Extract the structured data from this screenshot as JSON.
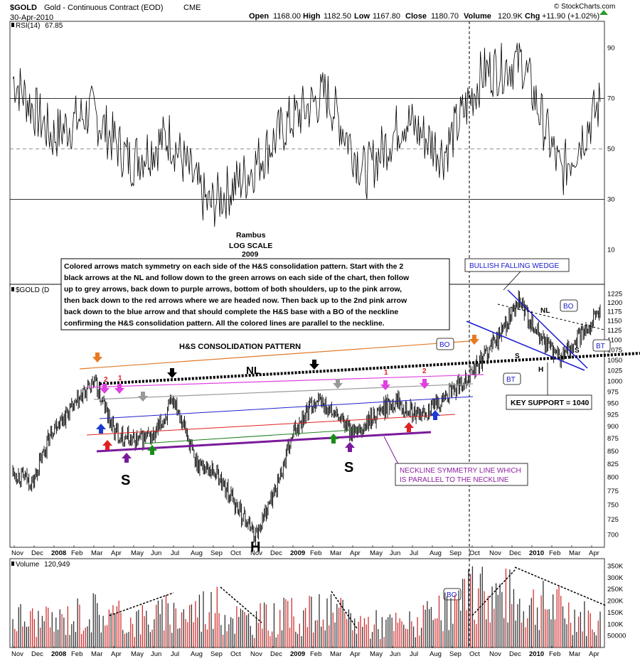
{
  "header": {
    "symbol": "$GOLD",
    "description": "Gold - Continuous Contract (EOD)",
    "exchange": "CME",
    "date": "30-Apr-2010",
    "open_label": "Open",
    "open": "1168.00",
    "high_label": "High",
    "high": "1182.50",
    "low_label": "Low",
    "low": "1167.80",
    "close_label": "Close",
    "close": "1180.70",
    "volume_label": "Volume",
    "volume": "120.9K",
    "chg_label": "Chg",
    "chg": "+11.90 (+1.02%)",
    "watermark": "© StockCharts.com"
  },
  "panels": {
    "rsi": {
      "label": "RSI(14)",
      "value": "67.85",
      "ticks": [
        "90",
        "70",
        "50",
        "30",
        "10"
      ],
      "tick_values": [
        90,
        70,
        50,
        30,
        10
      ],
      "overbought": 70,
      "oversold": 30,
      "midline": 50,
      "fill_color_ob": "#5e8a5e",
      "fill_color_os": "#b04a6a"
    },
    "price": {
      "label": "$GOLD (D",
      "scale": "log",
      "ticks": [
        "1225",
        "1200",
        "1175",
        "1150",
        "1125",
        "1100",
        "1075",
        "1050",
        "1025",
        "1000",
        "975",
        "950",
        "925",
        "900",
        "875",
        "850",
        "825",
        "800",
        "775",
        "750",
        "725",
        "700"
      ],
      "tick_values": [
        1225,
        1200,
        1175,
        1150,
        1125,
        1100,
        1075,
        1050,
        1025,
        1000,
        975,
        950,
        925,
        900,
        875,
        850,
        825,
        800,
        775,
        750,
        725,
        700
      ],
      "range": [
        680,
        1240
      ]
    },
    "volume": {
      "label": "Volume",
      "value": "120,949",
      "ticks": [
        "350K",
        "300K",
        "250K",
        "200K",
        "150K",
        "100K",
        "50000"
      ],
      "tick_values": [
        350000,
        300000,
        250000,
        200000,
        150000,
        100000,
        50000
      ],
      "range": [
        0,
        370000
      ]
    }
  },
  "x_axis": {
    "labels": [
      {
        "t": "Nov",
        "b": false
      },
      {
        "t": "Dec",
        "b": false
      },
      {
        "t": "2008",
        "b": true
      },
      {
        "t": "Feb",
        "b": false
      },
      {
        "t": "Mar",
        "b": false
      },
      {
        "t": "Apr",
        "b": false
      },
      {
        "t": "May",
        "b": false
      },
      {
        "t": "Jun",
        "b": false
      },
      {
        "t": "Jul",
        "b": false
      },
      {
        "t": "Aug",
        "b": false
      },
      {
        "t": "Sep",
        "b": false
      },
      {
        "t": "Oct",
        "b": false
      },
      {
        "t": "Nov",
        "b": false
      },
      {
        "t": "Dec",
        "b": false
      },
      {
        "t": "2009",
        "b": true
      },
      {
        "t": "Feb",
        "b": false
      },
      {
        "t": "Mar",
        "b": false
      },
      {
        "t": "Apr",
        "b": false
      },
      {
        "t": "May",
        "b": false
      },
      {
        "t": "Jun",
        "b": false
      },
      {
        "t": "Jul",
        "b": false
      },
      {
        "t": "Aug",
        "b": false
      },
      {
        "t": "Sep",
        "b": false
      },
      {
        "t": "Oct",
        "b": false
      },
      {
        "t": "Nov",
        "b": false
      },
      {
        "t": "Dec",
        "b": false
      },
      {
        "t": "2010",
        "b": true
      },
      {
        "t": "Feb",
        "b": false
      },
      {
        "t": "Mar",
        "b": false
      },
      {
        "t": "Apr",
        "b": false
      }
    ]
  },
  "annotations": {
    "author": "Rambus",
    "scale_note": "LOG SCALE",
    "year_note": "2009",
    "description": [
      "Colored arrows match symmetry on each side of the H&S consolidation pattern. Start with the 2",
      "black arrows at the NL and follow down to the green arrows on each side of the chart, then follow",
      "up to grey arrows, back down to purple arrows, bottom of both shoulders, up to the pink arrow,",
      "then back down to the red arrows where we are headed now. Then back up to the 2nd pink arrow",
      "back down to the blue arrow and that should complete the H&S base with a BO of the neckline",
      "confirming the H&S consolidation pattern. All the colored lines are parallel to the neckline."
    ],
    "pattern_title": "H&S CONSOLIDATION PATTERN",
    "neckline_label": "NL",
    "left_shoulder": "S",
    "head": "H",
    "right_shoulder": "S",
    "wedge_title": "BULLISH FALLING WEDGE",
    "wedge_nl": "NL",
    "wedge_s1": "S",
    "wedge_s2": "S",
    "wedge_h": "H",
    "bo_label": "BO",
    "bt_label": "BT",
    "key_support": "KEY SUPPORT = 1040",
    "symmetry_note": [
      "NECKLINE SYMMETRY LINE WHICH",
      "IS PARALLEL TO THE NECKLINE"
    ],
    "arrow_num_1": "1",
    "arrow_num_2": "2"
  },
  "chart_data": [
    {
      "type": "line",
      "title": "RSI(14) 67.85",
      "series": [
        {
          "name": "RSI(14)",
          "x": [
            "2007-11",
            "2008-01",
            "2008-03",
            "2008-05",
            "2008-07",
            "2008-09",
            "2008-10",
            "2008-12",
            "2009-02",
            "2009-04",
            "2009-06",
            "2009-08",
            "2009-10",
            "2009-12",
            "2010-02",
            "2010-04"
          ],
          "values": [
            78,
            55,
            65,
            45,
            55,
            27,
            40,
            60,
            72,
            40,
            62,
            48,
            80,
            85,
            40,
            68
          ]
        }
      ],
      "ylim": [
        0,
        100
      ],
      "reference_lines": [
        30,
        50,
        70
      ]
    },
    {
      "type": "line",
      "title": "$GOLD Gold - Continuous Contract (EOD) CME",
      "series": [
        {
          "name": "$GOLD",
          "x": [
            "2007-11",
            "2007-12",
            "2008-01",
            "2008-02",
            "2008-03",
            "2008-04",
            "2008-05",
            "2008-06",
            "2008-07",
            "2008-08",
            "2008-09",
            "2008-10",
            "2008-11",
            "2008-12",
            "2009-01",
            "2009-02",
            "2009-03",
            "2009-04",
            "2009-05",
            "2009-06",
            "2009-07",
            "2009-08",
            "2009-09",
            "2009-10",
            "2009-11",
            "2009-12",
            "2010-01",
            "2010-02",
            "2010-03",
            "2010-04"
          ],
          "values": [
            810,
            790,
            900,
            940,
            1000,
            890,
            870,
            880,
            960,
            830,
            810,
            750,
            700,
            780,
            900,
            960,
            920,
            880,
            930,
            960,
            920,
            950,
            990,
            1040,
            1110,
            1200,
            1110,
            1050,
            1110,
            1180
          ]
        }
      ],
      "y_scale": "log",
      "ylim": [
        680,
        1240
      ]
    },
    {
      "type": "bar",
      "title": "Volume 120,949",
      "series": [
        {
          "name": "Volume",
          "x": [
            "2007-11",
            "2008-01",
            "2008-03",
            "2008-05",
            "2008-07",
            "2008-09",
            "2008-11",
            "2009-01",
            "2009-03",
            "2009-05",
            "2009-07",
            "2009-09",
            "2009-11",
            "2010-01",
            "2010-03",
            "2010-04"
          ],
          "values": [
            150000,
            120000,
            180000,
            130000,
            160000,
            200000,
            130000,
            150000,
            170000,
            120000,
            110000,
            160000,
            280000,
            220000,
            190000,
            120949
          ]
        }
      ],
      "ylim": [
        0,
        370000
      ]
    }
  ]
}
